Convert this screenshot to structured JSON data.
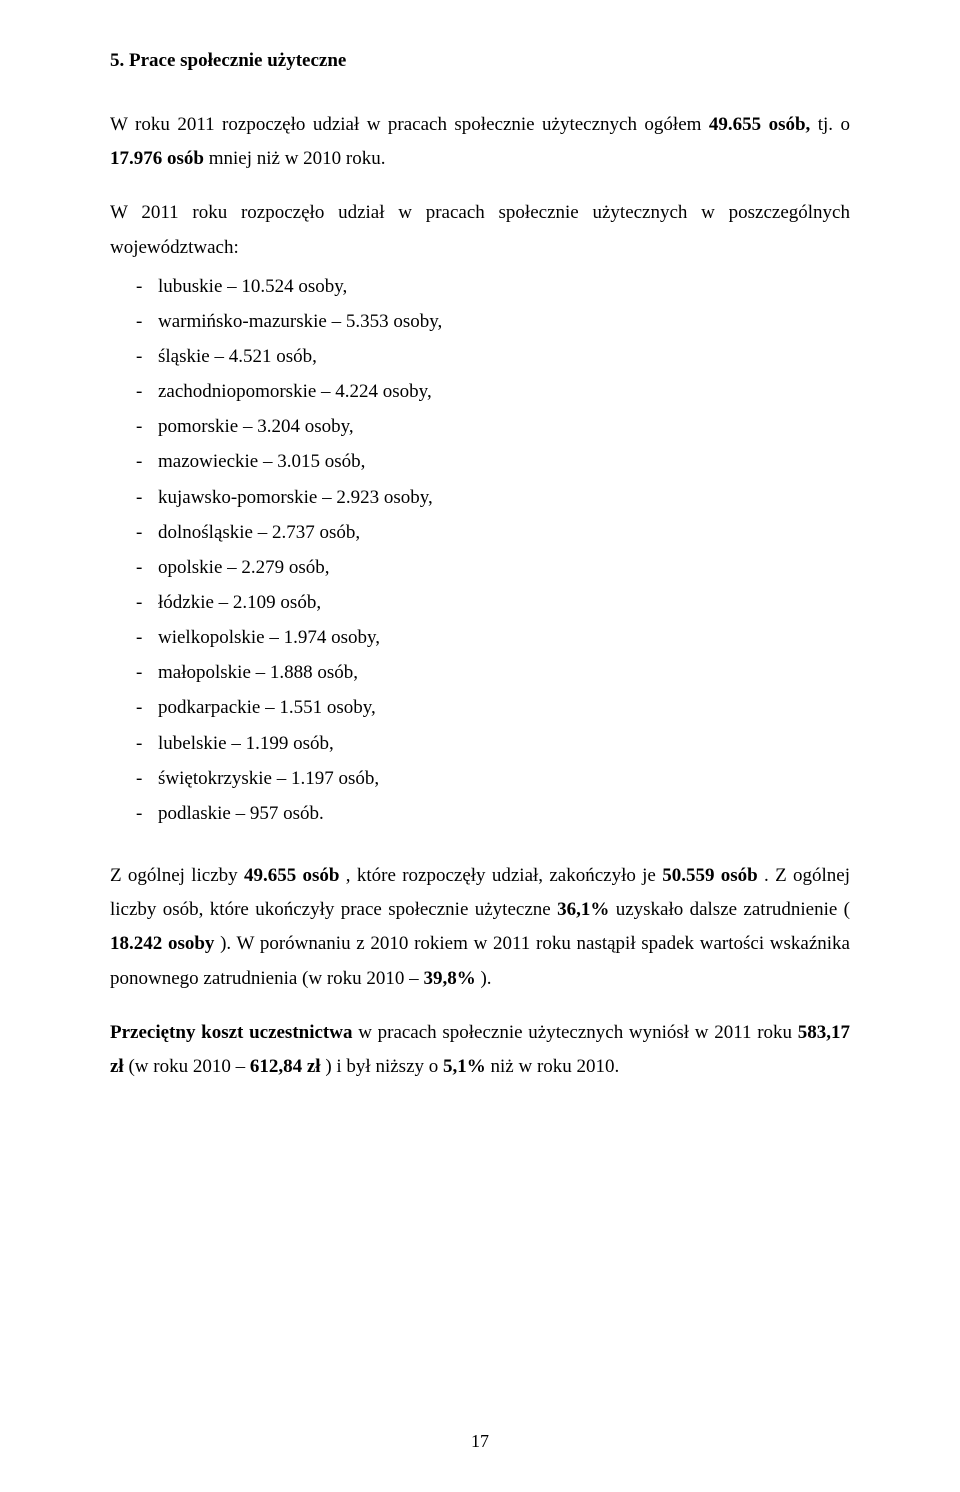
{
  "heading": "5. Prace społecznie użyteczne",
  "intro": {
    "prefix": "W roku 2011 rozpoczęło udział w pracach społecznie użytecznych ogółem ",
    "b1": "49.655 osób,",
    "mid": " tj. o ",
    "b2": "17.976 osób",
    "suffix": " mniej niż w 2010 roku."
  },
  "list_intro": "W 2011 roku rozpoczęło udział w pracach społecznie użytecznych w poszczególnych województwach:",
  "regions": [
    "lubuskie – 10.524 osoby,",
    "warmińsko-mazurskie – 5.353 osoby,",
    "śląskie – 4.521 osób,",
    "zachodniopomorskie – 4.224 osoby,",
    "pomorskie – 3.204 osoby,",
    "mazowieckie – 3.015 osób,",
    "kujawsko-pomorskie – 2.923 osoby,",
    "dolnośląskie – 2.737 osób,",
    "opolskie – 2.279 osób,",
    "łódzkie – 2.109 osób,",
    "wielkopolskie – 1.974 osoby,",
    "małopolskie – 1.888 osób,",
    "podkarpackie – 1.551 osoby,",
    "lubelskie – 1.199 osób,",
    "świętokrzyskie – 1.197 osób,",
    "podlaskie – 957 osób."
  ],
  "summary": {
    "p1": "Z ogólnej liczby ",
    "b1": "49.655 osób",
    "p2": ", które rozpoczęły udział, zakończyło je ",
    "b2": "50.559 osób",
    "p3": ". Z ogólnej liczby osób, które ukończyły prace społecznie użyteczne ",
    "b3": "36,1%",
    "p4": " uzyskało dalsze zatrudnienie (",
    "b4": "18.242 osoby",
    "p5": "). W porównaniu z 2010 rokiem w 2011 roku nastąpił spadek wartości wskaźnika ponownego zatrudnienia (w roku 2010 – ",
    "b5": "39,8%",
    "p6": ")."
  },
  "cost": {
    "b1": "Przeciętny koszt uczestnictwa",
    "p1": " w pracach społecznie użytecznych wyniósł w 2011 roku ",
    "b2": "583,17 zł",
    "p2": " (w roku 2010 – ",
    "b3": "612,84 zł",
    "p3": ") i był niższy o ",
    "b4": "5,1%",
    "p4": " niż w roku 2010."
  },
  "page_number": "17"
}
